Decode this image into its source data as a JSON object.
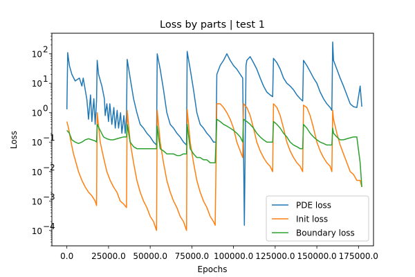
{
  "chart_data": {
    "type": "line",
    "title": "Loss by parts | test 1",
    "xlabel": "Epochs",
    "ylabel": "Loss",
    "yscale": "log",
    "xlim": [
      -9000,
      184000
    ],
    "ylim": [
      3e-05,
      500
    ],
    "x_ticks": [
      0,
      25000,
      50000,
      75000,
      100000,
      125000,
      150000,
      175000
    ],
    "x_tick_labels": [
      "0.0",
      "25000.0",
      "50000.0",
      "75000.0",
      "100000.0",
      "125000.0",
      "150000.0",
      "175000.0"
    ],
    "y_ticks": [
      0.0001,
      0.001,
      0.01,
      0.1,
      1,
      10,
      100
    ],
    "y_tick_labels": [
      "10",
      "10",
      "10",
      "10",
      "10",
      "10",
      "10"
    ],
    "y_tick_exponents": [
      "−4",
      "−3",
      "−2",
      "−1",
      "0",
      "1",
      "2"
    ],
    "grid": false,
    "legend_position": "lower-right",
    "colors": {
      "pde": "#1f77b4",
      "init": "#ff7f0e",
      "boundary": "#2ca02c"
    },
    "series": [
      {
        "name": "PDE loss",
        "color": "#1f77b4",
        "x": [
          0,
          500,
          1500,
          3000,
          5000,
          7500,
          9000,
          9800,
          12000,
          13000,
          14200,
          15000,
          16200,
          17000,
          17800,
          18200,
          19000,
          21000,
          22500,
          23000,
          24000,
          25000,
          25800,
          27000,
          28200,
          29000,
          30200,
          31000,
          32200,
          33000,
          34200,
          35000,
          35800,
          36200,
          38000,
          40000,
          42000,
          44000,
          46000,
          48000,
          50000,
          52000,
          53800,
          54200,
          56000,
          58000,
          60000,
          62000,
          64000,
          66000,
          68000,
          70000,
          71800,
          72200,
          74000,
          76000,
          78000,
          80000,
          82000,
          84000,
          86000,
          88000,
          89500,
          90000,
          92000,
          94000,
          96000,
          98000,
          100000,
          102000,
          104000,
          105500,
          106500,
          107500,
          108000,
          110000,
          112000,
          114000,
          116000,
          118000,
          120000,
          122000,
          123500,
          124000,
          126000,
          128000,
          130000,
          132000,
          134000,
          136000,
          138000,
          140000,
          141500,
          142000,
          144000,
          146000,
          148000,
          150000,
          152000,
          154000,
          156000,
          158000,
          159000,
          159500,
          160000,
          162000,
          164000,
          166000,
          168000,
          170000,
          172000,
          174000,
          176000,
          177000
        ],
        "y": [
          1.3,
          110,
          40,
          20,
          12,
          15,
          8,
          15,
          2.8,
          0.6,
          4,
          0.5,
          3,
          0.4,
          2.5,
          60,
          20,
          8,
          3,
          0.8,
          2,
          0.5,
          2,
          0.4,
          1.5,
          0.3,
          1.2,
          0.3,
          1,
          0.2,
          0.8,
          0.2,
          0.8,
          65,
          15,
          3,
          1,
          0.4,
          0.3,
          0.2,
          0.15,
          0.1,
          0.08,
          100,
          30,
          6,
          1,
          0.4,
          0.3,
          0.2,
          0.15,
          0.1,
          0.08,
          120,
          30,
          6,
          1,
          0.4,
          0.3,
          0.2,
          0.15,
          0.1,
          0.1,
          20,
          40,
          60,
          100,
          60,
          40,
          30,
          20,
          15,
          0.00015,
          40,
          60,
          80,
          50,
          30,
          15,
          8,
          5,
          4,
          3.5,
          70,
          50,
          30,
          15,
          10,
          8,
          6,
          4,
          3,
          2.5,
          60,
          40,
          25,
          15,
          10,
          5,
          3,
          2,
          1.5,
          1.2,
          250,
          60,
          30,
          15,
          8,
          4,
          2,
          1.6,
          1.5,
          8,
          1.6
        ]
      },
      {
        "name": "Init loss",
        "color": "#ff7f0e",
        "x": [
          0,
          1000,
          2500,
          4000,
          5500,
          7000,
          9000,
          11000,
          13000,
          15000,
          17000,
          17800,
          18200,
          20000,
          22000,
          24000,
          26000,
          28000,
          30000,
          32000,
          34000,
          35800,
          36200,
          38000,
          40000,
          42000,
          44000,
          46000,
          48000,
          50000,
          52000,
          53800,
          54200,
          56000,
          58000,
          60000,
          62000,
          64000,
          66000,
          68000,
          70000,
          71800,
          72200,
          74000,
          76000,
          78000,
          80000,
          82000,
          84000,
          86000,
          88000,
          89000,
          90000,
          92000,
          94000,
          96000,
          98000,
          100000,
          102000,
          104000,
          105500,
          106000,
          108000,
          110000,
          112000,
          114000,
          116000,
          118000,
          120000,
          122000,
          123500,
          124000,
          126000,
          128000,
          130000,
          132000,
          134000,
          136000,
          138000,
          140000,
          141500,
          142000,
          144000,
          146000,
          148000,
          150000,
          152000,
          154000,
          156000,
          158000,
          159000,
          159500,
          160000,
          162000,
          164000,
          166000,
          168000,
          170000,
          172000,
          174000,
          176000,
          177000
        ],
        "y": [
          0.5,
          0.3,
          0.1,
          0.04,
          0.02,
          0.01,
          0.005,
          0.003,
          0.002,
          0.0015,
          0.001,
          0.0007,
          1,
          0.1,
          0.03,
          0.01,
          0.005,
          0.003,
          0.002,
          0.001,
          0.0008,
          0.0006,
          1.2,
          0.1,
          0.02,
          0.005,
          0.002,
          0.001,
          0.0006,
          0.0003,
          0.0002,
          0.0001,
          1.2,
          0.1,
          0.02,
          0.005,
          0.002,
          0.001,
          0.0006,
          0.0003,
          0.0002,
          0.0001,
          1.3,
          0.1,
          0.02,
          0.005,
          0.002,
          0.001,
          0.0006,
          0.0003,
          0.0002,
          0.00015,
          2,
          2,
          1.5,
          1,
          0.6,
          0.3,
          0.1,
          0.05,
          0.03,
          2,
          1.5,
          0.8,
          0.3,
          0.1,
          0.05,
          0.03,
          0.02,
          0.015,
          0.01,
          2,
          1.5,
          0.8,
          0.3,
          0.1,
          0.05,
          0.03,
          0.02,
          0.015,
          0.01,
          1.8,
          1.5,
          0.8,
          0.3,
          0.1,
          0.05,
          0.03,
          0.02,
          0.015,
          0.01,
          1.2,
          0.6,
          0.2,
          0.08,
          0.04,
          0.02,
          0.01,
          0.008,
          0.005,
          0.005,
          0.003
        ]
      },
      {
        "name": "Boundary loss",
        "color": "#2ca02c",
        "x": [
          0,
          1500,
          3000,
          5000,
          7000,
          9000,
          11000,
          13000,
          15000,
          17000,
          17800,
          18200,
          20000,
          22000,
          24000,
          26000,
          28000,
          30000,
          32000,
          34000,
          35800,
          36200,
          38000,
          40000,
          42000,
          44000,
          46000,
          48000,
          50000,
          52000,
          53800,
          54200,
          56000,
          58000,
          60000,
          62000,
          64000,
          66000,
          68000,
          70000,
          71800,
          72200,
          74000,
          76000,
          78000,
          80000,
          82000,
          84000,
          86000,
          88000,
          89000,
          90000,
          92000,
          94000,
          96000,
          98000,
          100000,
          102000,
          104000,
          105500,
          106000,
          108000,
          110000,
          112000,
          114000,
          116000,
          118000,
          120000,
          122000,
          123500,
          124000,
          126000,
          128000,
          130000,
          132000,
          134000,
          136000,
          138000,
          140000,
          141500,
          142000,
          144000,
          146000,
          148000,
          150000,
          152000,
          154000,
          156000,
          158000,
          159000,
          159500,
          160000,
          162000,
          164000,
          166000,
          168000,
          170000,
          172000,
          174000,
          176000,
          177000
        ],
        "y": [
          0.25,
          0.2,
          0.12,
          0.1,
          0.09,
          0.1,
          0.12,
          0.13,
          0.12,
          0.11,
          0.1,
          0.4,
          0.25,
          0.15,
          0.13,
          0.12,
          0.12,
          0.13,
          0.14,
          0.15,
          0.15,
          0.4,
          0.1,
          0.07,
          0.06,
          0.06,
          0.06,
          0.06,
          0.06,
          0.06,
          0.06,
          0.35,
          0.06,
          0.05,
          0.04,
          0.04,
          0.04,
          0.035,
          0.035,
          0.04,
          0.04,
          0.4,
          0.06,
          0.04,
          0.03,
          0.03,
          0.025,
          0.025,
          0.02,
          0.02,
          0.02,
          0.6,
          0.5,
          0.4,
          0.35,
          0.3,
          0.25,
          0.2,
          0.15,
          0.1,
          0.6,
          0.5,
          0.4,
          0.3,
          0.2,
          0.15,
          0.12,
          0.1,
          0.1,
          0.1,
          0.5,
          0.4,
          0.3,
          0.2,
          0.15,
          0.1,
          0.08,
          0.07,
          0.06,
          0.06,
          0.4,
          0.3,
          0.2,
          0.15,
          0.12,
          0.1,
          0.09,
          0.08,
          0.08,
          0.08,
          0.3,
          0.2,
          0.15,
          0.12,
          0.12,
          0.13,
          0.14,
          0.15,
          0.15,
          0.02,
          0.003
        ]
      }
    ]
  }
}
